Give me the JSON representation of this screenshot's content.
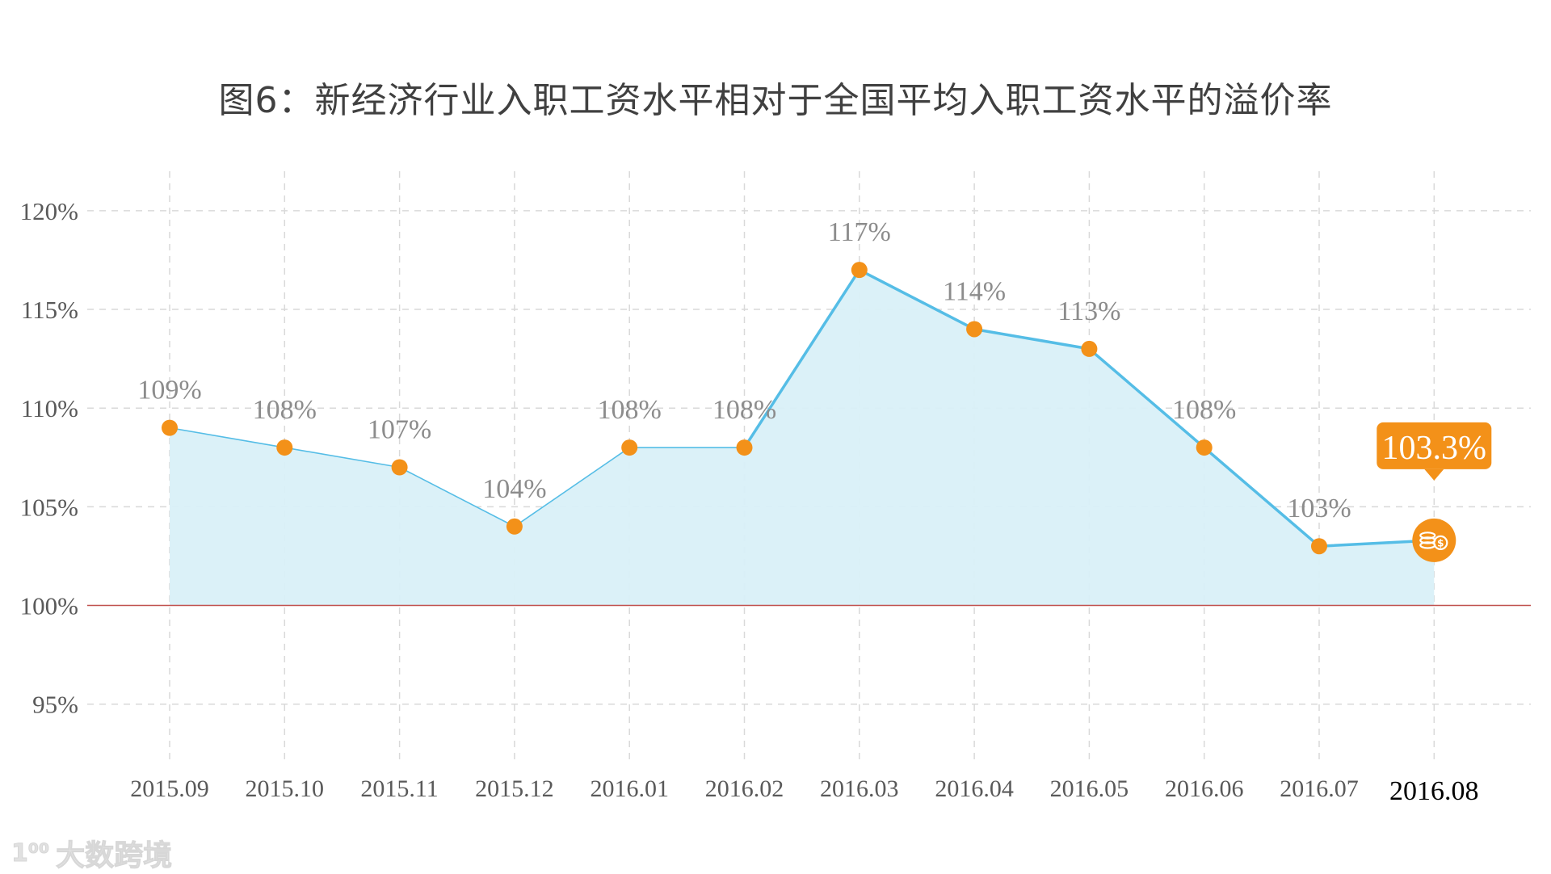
{
  "title": "图6：新经济行业入职工资水平相对于全国平均入职工资水平的溢价率",
  "watermark": {
    "logo": "1⁰⁰",
    "text": "大数跨境"
  },
  "colors": {
    "line": "#55bde6",
    "fill": "#d9f0f8",
    "marker": "#f39119",
    "grid": "#d9d9d9",
    "baseline": "#c0504d",
    "value_label": "#8c8c8c",
    "tick_label": "#595959",
    "callout_bg": "#f39119",
    "callout_text": "#ffffff"
  },
  "chart_data": {
    "type": "area",
    "title": "图6：新经济行业入职工资水平相对于全国平均入职工资水平的溢价率",
    "categories": [
      "2015.09",
      "2015.10",
      "2015.11",
      "2015.12",
      "2016.01",
      "2016.02",
      "2016.03",
      "2016.04",
      "2016.05",
      "2016.06",
      "2016.07",
      "2016.08"
    ],
    "values": [
      109,
      108,
      107,
      104,
      108,
      108,
      117,
      114,
      113,
      108,
      103,
      103.3
    ],
    "value_labels": [
      "109%",
      "108%",
      "107%",
      "104%",
      "108%",
      "108%",
      "117%",
      "114%",
      "113%",
      "108%",
      "103%",
      "103.3%"
    ],
    "ylim": [
      92,
      122
    ],
    "yticks": [
      95,
      100,
      105,
      110,
      115,
      120
    ],
    "ytick_labels": [
      "95%",
      "100%",
      "105%",
      "110%",
      "115%",
      "120%"
    ],
    "baseline": 100,
    "grid": true,
    "highlight": {
      "category": "2016.08",
      "label": "103.3%",
      "icon": "coins-icon"
    },
    "xlabel": "",
    "ylabel": ""
  }
}
